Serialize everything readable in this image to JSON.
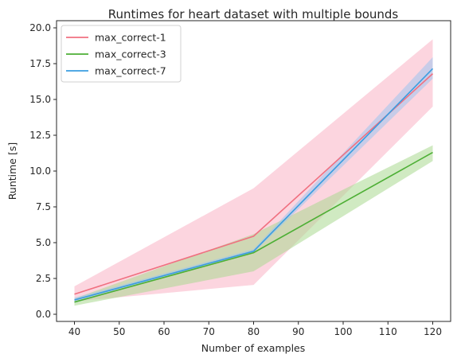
{
  "chart_data": {
    "type": "line",
    "title": "Runtimes for heart dataset with multiple bounds",
    "xlabel": "Number of examples",
    "ylabel": "Runtime [s]",
    "xlim": [
      36,
      124
    ],
    "ylim": [
      -0.5,
      20.5
    ],
    "xticks": [
      40,
      50,
      60,
      70,
      80,
      90,
      100,
      110,
      120
    ],
    "yticks": [
      0.0,
      2.5,
      5.0,
      7.5,
      10.0,
      12.5,
      15.0,
      17.5,
      20.0
    ],
    "ytick_labels": [
      "0.0",
      "2.5",
      "5.0",
      "7.5",
      "10.0",
      "12.5",
      "15.0",
      "17.5",
      "20.0"
    ],
    "legend_position": "top-left",
    "x": [
      40,
      80,
      120
    ],
    "series": [
      {
        "name": "max_correct-1",
        "color": "#f07080",
        "band_color": "#f9b3c5",
        "values": [
          1.4,
          5.45,
          16.8
        ],
        "lower": [
          0.9,
          2.05,
          14.5
        ],
        "upper": [
          1.95,
          8.8,
          19.2
        ]
      },
      {
        "name": "max_correct-3",
        "color": "#4daf35",
        "band_color": "#a9d98f",
        "values": [
          0.85,
          4.3,
          11.3
        ],
        "lower": [
          0.6,
          3.0,
          10.7
        ],
        "upper": [
          1.1,
          5.6,
          11.8
        ]
      },
      {
        "name": "max_correct-7",
        "color": "#3a9de0",
        "band_color": "#9dc5ef",
        "values": [
          1.0,
          4.4,
          17.15
        ],
        "lower": [
          0.8,
          4.3,
          16.45
        ],
        "upper": [
          1.15,
          4.55,
          17.95
        ]
      }
    ]
  }
}
